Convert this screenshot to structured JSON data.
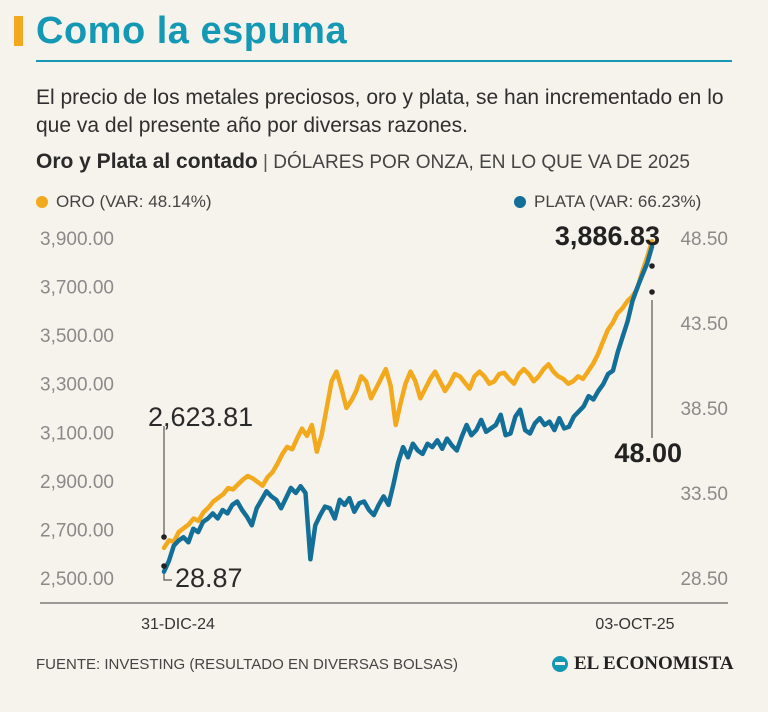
{
  "header": {
    "title": "Como la espuma",
    "subtitle": "El precio de los metales preciosos, oro y plata, se han incrementado en lo que va del presente año por diversas razones."
  },
  "chart_heading": {
    "bold": "Oro y Plata al contado",
    "separator": "|",
    "units": "DÓLARES POR ONZA, EN LO QUE VA DE 2025"
  },
  "legend": {
    "oro": "ORO (VAR: 48.14%)",
    "plata": "PLATA (VAR: 66.23%)"
  },
  "colors": {
    "oro": "#f2a91d",
    "plata": "#136e98",
    "accent": "#1598b4"
  },
  "footer": {
    "source": "FUENTE: INVESTING (RESULTADO EN DIVERSAS BOLSAS)",
    "brand": "EL ECONOMISTA"
  },
  "chart_data": {
    "type": "line",
    "x_labels": [
      "31-DIC-24",
      "03-OCT-25"
    ],
    "left_axis": {
      "ticks": [
        "3,900.00",
        "3,700.00",
        "3,500.00",
        "3,300.00",
        "3,100.00",
        "2,900.00",
        "2,700.00",
        "2,500.00"
      ],
      "range": [
        2500,
        3900
      ]
    },
    "right_axis": {
      "ticks": [
        "48.50",
        "43.50",
        "38.50",
        "33.50",
        "28.50"
      ],
      "range": [
        28.5,
        48.5
      ]
    },
    "annotations": {
      "oro_start": "2,623.81",
      "oro_end": "3,886.83",
      "plata_start": "28.87",
      "plata_end": "48.00"
    },
    "series": [
      {
        "name": "Oro",
        "axis": "left",
        "values": [
          2623.81,
          2655,
          2650,
          2690,
          2705,
          2720,
          2745,
          2735,
          2770,
          2790,
          2815,
          2830,
          2845,
          2870,
          2865,
          2885,
          2905,
          2920,
          2910,
          2895,
          2880,
          2915,
          2935,
          2970,
          3010,
          3040,
          3030,
          3075,
          3115,
          3085,
          3130,
          3020,
          3090,
          3200,
          3310,
          3350,
          3280,
          3200,
          3230,
          3270,
          3330,
          3310,
          3240,
          3280,
          3320,
          3360,
          3290,
          3130,
          3220,
          3300,
          3350,
          3310,
          3240,
          3280,
          3320,
          3350,
          3310,
          3270,
          3300,
          3340,
          3330,
          3305,
          3280,
          3330,
          3350,
          3330,
          3300,
          3310,
          3340,
          3345,
          3320,
          3300,
          3340,
          3360,
          3340,
          3310,
          3330,
          3360,
          3380,
          3350,
          3330,
          3320,
          3300,
          3310,
          3330,
          3320,
          3350,
          3380,
          3420,
          3470,
          3520,
          3550,
          3590,
          3610,
          3640,
          3660,
          3690,
          3760,
          3820,
          3886.83
        ]
      },
      {
        "name": "Plata",
        "axis": "right",
        "values": [
          28.87,
          29.5,
          30.4,
          30.7,
          30.9,
          30.6,
          31.4,
          31.2,
          31.8,
          32.0,
          32.3,
          32.0,
          32.5,
          32.3,
          32.8,
          33.0,
          32.5,
          32.1,
          31.6,
          32.6,
          33.1,
          33.6,
          33.3,
          33.1,
          32.6,
          33.2,
          33.8,
          33.5,
          33.9,
          33.5,
          29.6,
          31.6,
          32.2,
          32.7,
          32.6,
          32.0,
          33.1,
          32.8,
          33.2,
          32.4,
          32.9,
          33.0,
          32.5,
          32.2,
          32.8,
          33.3,
          32.8,
          34.0,
          35.3,
          36.2,
          35.6,
          36.4,
          36.0,
          35.8,
          36.4,
          36.2,
          36.6,
          36.1,
          36.7,
          36.3,
          36.0,
          36.8,
          37.5,
          36.9,
          37.2,
          37.8,
          37.1,
          37.3,
          37.5,
          38.1,
          36.9,
          37.0,
          38.0,
          38.4,
          37.2,
          37.0,
          37.6,
          37.9,
          37.5,
          37.7,
          37.2,
          37.9,
          37.3,
          37.4,
          38.0,
          38.3,
          38.6,
          39.2,
          39.0,
          39.5,
          39.9,
          40.5,
          40.7,
          41.8,
          42.7,
          43.6,
          44.8,
          45.6,
          46.3,
          47.0,
          48.0
        ]
      }
    ]
  }
}
